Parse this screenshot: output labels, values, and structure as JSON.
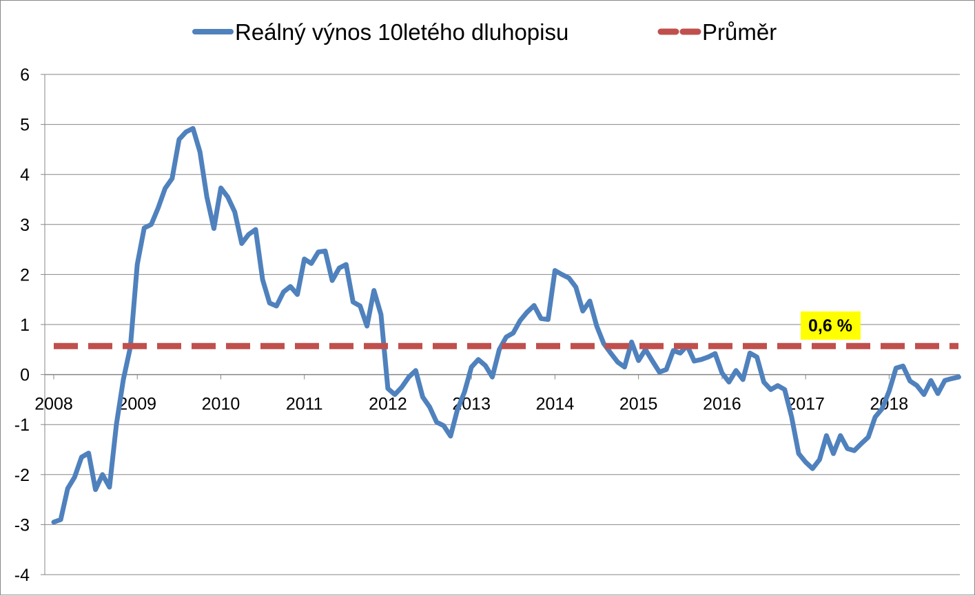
{
  "chart_data": {
    "type": "line",
    "title": "",
    "xlabel": "",
    "ylabel": "",
    "ylim": [
      -4,
      6
    ],
    "xlim": [
      2008.0,
      2018.83
    ],
    "y_ticks": [
      6,
      5,
      4,
      3,
      2,
      1,
      0,
      -1,
      -2,
      -3,
      -4
    ],
    "x_ticks": [
      "2008",
      "2009",
      "2010",
      "2011",
      "2012",
      "2013",
      "2014",
      "2015",
      "2016",
      "2017",
      "2018"
    ],
    "grid": "horizontal",
    "legend_position": "top",
    "series": [
      {
        "name": "Reálný výnos 10letého dluhopisu",
        "color": "#4F81BD",
        "style": "solid",
        "x": [
          2008.0,
          2008.083,
          2008.167,
          2008.25,
          2008.333,
          2008.417,
          2008.5,
          2008.583,
          2008.667,
          2008.75,
          2008.833,
          2008.917,
          2009.0,
          2009.083,
          2009.167,
          2009.25,
          2009.333,
          2009.417,
          2009.5,
          2009.583,
          2009.667,
          2009.75,
          2009.833,
          2009.917,
          2010.0,
          2010.083,
          2010.167,
          2010.25,
          2010.333,
          2010.417,
          2010.5,
          2010.583,
          2010.667,
          2010.75,
          2010.833,
          2010.917,
          2011.0,
          2011.083,
          2011.167,
          2011.25,
          2011.333,
          2011.417,
          2011.5,
          2011.583,
          2011.667,
          2011.75,
          2011.833,
          2011.917,
          2012.0,
          2012.083,
          2012.167,
          2012.25,
          2012.333,
          2012.417,
          2012.5,
          2012.583,
          2012.667,
          2012.75,
          2012.833,
          2012.917,
          2013.0,
          2013.083,
          2013.167,
          2013.25,
          2013.333,
          2013.417,
          2013.5,
          2013.583,
          2013.667,
          2013.75,
          2013.833,
          2013.917,
          2014.0,
          2014.083,
          2014.167,
          2014.25,
          2014.333,
          2014.417,
          2014.5,
          2014.583,
          2014.667,
          2014.75,
          2014.833,
          2014.917,
          2015.0,
          2015.083,
          2015.167,
          2015.25,
          2015.333,
          2015.417,
          2015.5,
          2015.583,
          2015.667,
          2015.75,
          2015.833,
          2015.917,
          2016.0,
          2016.083,
          2016.167,
          2016.25,
          2016.333,
          2016.417,
          2016.5,
          2016.583,
          2016.667,
          2016.75,
          2016.833,
          2016.917,
          2017.0,
          2017.083,
          2017.167,
          2017.25,
          2017.333,
          2017.417,
          2017.5,
          2017.583,
          2017.667,
          2017.75,
          2017.833,
          2017.917,
          2018.0,
          2018.083,
          2018.167,
          2018.25,
          2018.333,
          2018.417,
          2018.5,
          2018.583,
          2018.667,
          2018.75,
          2018.833
        ],
        "values": [
          -2.95,
          -2.9,
          -2.28,
          -2.05,
          -1.65,
          -1.57,
          -2.3,
          -2.0,
          -2.25,
          -1.0,
          -0.1,
          0.55,
          2.2,
          2.93,
          3.0,
          3.33,
          3.72,
          3.92,
          4.7,
          4.85,
          4.92,
          4.45,
          3.55,
          2.92,
          3.73,
          3.55,
          3.25,
          2.62,
          2.8,
          2.9,
          1.9,
          1.43,
          1.37,
          1.65,
          1.76,
          1.6,
          2.31,
          2.22,
          2.45,
          2.47,
          1.88,
          2.13,
          2.2,
          1.45,
          1.37,
          0.97,
          1.68,
          1.2,
          -0.28,
          -0.4,
          -0.25,
          -0.05,
          0.08,
          -0.45,
          -0.65,
          -0.95,
          -1.02,
          -1.23,
          -0.7,
          -0.35,
          0.15,
          0.3,
          0.18,
          -0.05,
          0.5,
          0.75,
          0.83,
          1.08,
          1.25,
          1.38,
          1.12,
          1.1,
          2.08,
          2.0,
          1.93,
          1.75,
          1.27,
          1.47,
          0.97,
          0.62,
          0.43,
          0.25,
          0.15,
          0.65,
          0.28,
          0.5,
          0.27,
          0.05,
          0.1,
          0.48,
          0.43,
          0.58,
          0.27,
          0.3,
          0.35,
          0.42,
          0.03,
          -0.15,
          0.08,
          -0.1,
          0.43,
          0.35,
          -0.15,
          -0.3,
          -0.22,
          -0.3,
          -0.85,
          -1.58,
          -1.75,
          -1.88,
          -1.7,
          -1.22,
          -1.58,
          -1.22,
          -1.48,
          -1.52,
          -1.38,
          -1.25,
          -0.85,
          -0.68,
          -0.33,
          0.13,
          0.17,
          -0.13,
          -0.22,
          -0.4,
          -0.12,
          -0.38,
          -0.12,
          -0.08,
          -0.05
        ]
      },
      {
        "name": "Průměr",
        "color": "#C0504D",
        "style": "dashed",
        "x": [
          2008.0,
          2018.83
        ],
        "values": [
          0.57,
          0.57
        ]
      }
    ],
    "annotation": {
      "text": "0,6 %",
      "background": "#FFFF00",
      "attached_to": "Průměr"
    }
  }
}
